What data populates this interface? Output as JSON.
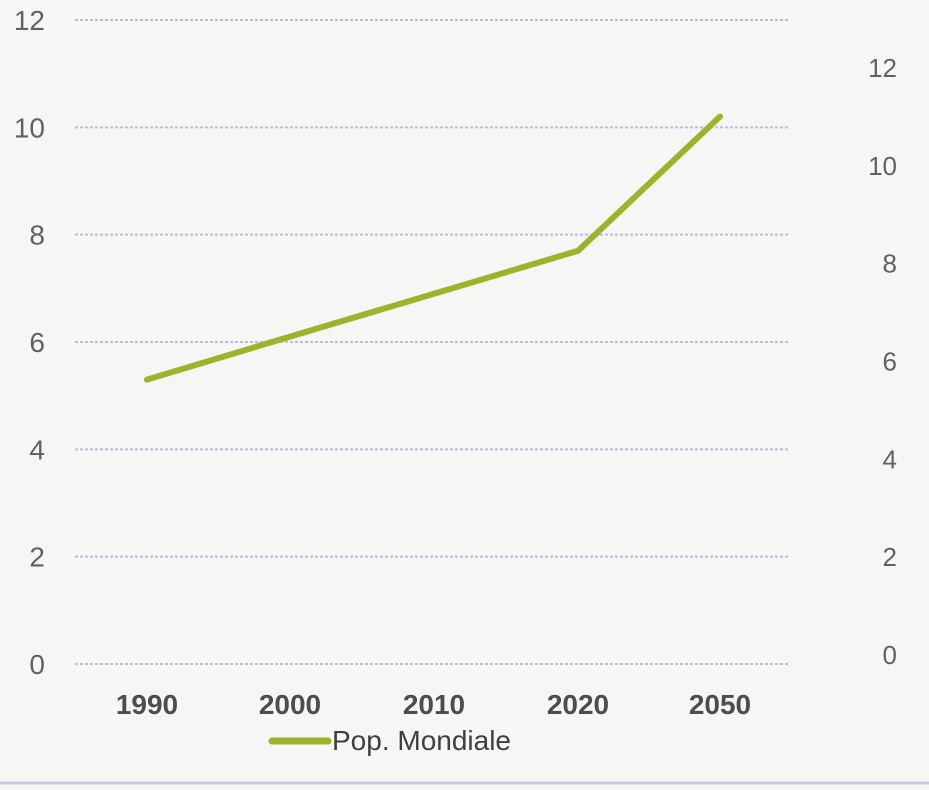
{
  "chart_data": {
    "type": "line",
    "categories": [
      "1990",
      "2000",
      "2010",
      "2020",
      "2050"
    ],
    "series": [
      {
        "name": "Pop. Mondiale",
        "values": [
          5.3,
          6.1,
          6.9,
          7.7,
          10.2
        ]
      }
    ],
    "ylim": [
      0,
      12
    ],
    "yticks": [
      "0",
      "2",
      "4",
      "6",
      "8",
      "10",
      "12"
    ],
    "y2ticks": [
      "0",
      "2",
      "4",
      "6",
      "8",
      "10",
      "12"
    ],
    "grid": true,
    "legend_position": "bottom",
    "colors": {
      "series": "#9ab52c",
      "grid": "#b8bde0"
    }
  }
}
